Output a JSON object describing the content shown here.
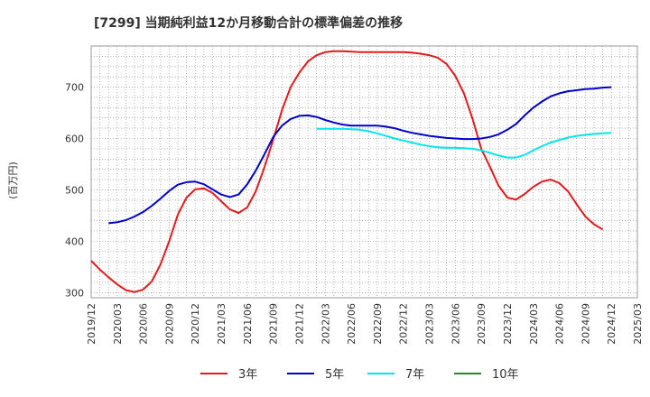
{
  "chart_data": {
    "type": "line",
    "title": "[7299]  当期純利益12か月移動合計の標準偏差の推移",
    "ylabel": "(百万円)",
    "xlabel": "",
    "ylim": [
      290,
      780
    ],
    "yticks": [
      300,
      400,
      500,
      600,
      700
    ],
    "xrange": [
      "2019-12",
      "2025-03"
    ],
    "xticks": [
      "2019/12",
      "2020/03",
      "2020/06",
      "2020/09",
      "2020/12",
      "2021/03",
      "2021/06",
      "2021/09",
      "2021/12",
      "2022/03",
      "2022/06",
      "2022/09",
      "2022/12",
      "2023/03",
      "2023/06",
      "2023/09",
      "2023/12",
      "2024/03",
      "2024/06",
      "2024/09",
      "2024/12",
      "2025/03"
    ],
    "grid": true,
    "legend_position": "bottom",
    "series": [
      {
        "name": "3年",
        "color": "#e31a1c",
        "points": [
          [
            "2019-12",
            362
          ],
          [
            "2020-01",
            345
          ],
          [
            "2020-02",
            330
          ],
          [
            "2020-03",
            316
          ],
          [
            "2020-04",
            305
          ],
          [
            "2020-05",
            301
          ],
          [
            "2020-06",
            306
          ],
          [
            "2020-07",
            322
          ],
          [
            "2020-08",
            355
          ],
          [
            "2020-09",
            400
          ],
          [
            "2020-10",
            452
          ],
          [
            "2020-11",
            485
          ],
          [
            "2020-12",
            501
          ],
          [
            "2021-01",
            503
          ],
          [
            "2021-02",
            494
          ],
          [
            "2021-03",
            478
          ],
          [
            "2021-04",
            462
          ],
          [
            "2021-05",
            455
          ],
          [
            "2021-06",
            466
          ],
          [
            "2021-07",
            498
          ],
          [
            "2021-08",
            545
          ],
          [
            "2021-09",
            598
          ],
          [
            "2021-10",
            655
          ],
          [
            "2021-11",
            700
          ],
          [
            "2021-12",
            728
          ],
          [
            "2022-01",
            750
          ],
          [
            "2022-02",
            762
          ],
          [
            "2022-03",
            768
          ],
          [
            "2022-04",
            770
          ],
          [
            "2022-05",
            770
          ],
          [
            "2022-06",
            769
          ],
          [
            "2022-07",
            768
          ],
          [
            "2022-08",
            768
          ],
          [
            "2022-09",
            768
          ],
          [
            "2022-10",
            768
          ],
          [
            "2022-11",
            768
          ],
          [
            "2022-12",
            768
          ],
          [
            "2023-01",
            767
          ],
          [
            "2023-02",
            765
          ],
          [
            "2023-03",
            762
          ],
          [
            "2023-04",
            757
          ],
          [
            "2023-05",
            745
          ],
          [
            "2023-06",
            722
          ],
          [
            "2023-07",
            688
          ],
          [
            "2023-08",
            638
          ],
          [
            "2023-09",
            580
          ],
          [
            "2023-10",
            545
          ],
          [
            "2023-11",
            508
          ],
          [
            "2023-12",
            485
          ],
          [
            "2024-01",
            481
          ],
          [
            "2024-02",
            492
          ],
          [
            "2024-03",
            506
          ],
          [
            "2024-04",
            516
          ],
          [
            "2024-05",
            520
          ],
          [
            "2024-06",
            513
          ],
          [
            "2024-07",
            497
          ],
          [
            "2024-08",
            472
          ],
          [
            "2024-09",
            448
          ],
          [
            "2024-10",
            433
          ],
          [
            "2024-11",
            423
          ]
        ]
      },
      {
        "name": "5年",
        "color": "#0000cc",
        "points": [
          [
            "2020-02",
            435
          ],
          [
            "2020-03",
            437
          ],
          [
            "2020-04",
            441
          ],
          [
            "2020-05",
            448
          ],
          [
            "2020-06",
            457
          ],
          [
            "2020-07",
            469
          ],
          [
            "2020-08",
            483
          ],
          [
            "2020-09",
            498
          ],
          [
            "2020-10",
            510
          ],
          [
            "2020-11",
            515
          ],
          [
            "2020-12",
            516
          ],
          [
            "2021-01",
            511
          ],
          [
            "2021-02",
            501
          ],
          [
            "2021-03",
            491
          ],
          [
            "2021-04",
            486
          ],
          [
            "2021-05",
            491
          ],
          [
            "2021-06",
            511
          ],
          [
            "2021-07",
            538
          ],
          [
            "2021-08",
            570
          ],
          [
            "2021-09",
            603
          ],
          [
            "2021-10",
            625
          ],
          [
            "2021-11",
            638
          ],
          [
            "2021-12",
            644
          ],
          [
            "2022-01",
            645
          ],
          [
            "2022-02",
            642
          ],
          [
            "2022-03",
            636
          ],
          [
            "2022-04",
            631
          ],
          [
            "2022-05",
            627
          ],
          [
            "2022-06",
            625
          ],
          [
            "2022-07",
            625
          ],
          [
            "2022-08",
            625
          ],
          [
            "2022-09",
            625
          ],
          [
            "2022-10",
            623
          ],
          [
            "2022-11",
            620
          ],
          [
            "2022-12",
            615
          ],
          [
            "2023-01",
            611
          ],
          [
            "2023-02",
            608
          ],
          [
            "2023-03",
            605
          ],
          [
            "2023-04",
            603
          ],
          [
            "2023-05",
            601
          ],
          [
            "2023-06",
            600
          ],
          [
            "2023-07",
            599
          ],
          [
            "2023-08",
            599
          ],
          [
            "2023-09",
            600
          ],
          [
            "2023-10",
            603
          ],
          [
            "2023-11",
            608
          ],
          [
            "2023-12",
            617
          ],
          [
            "2024-01",
            628
          ],
          [
            "2024-02",
            645
          ],
          [
            "2024-03",
            660
          ],
          [
            "2024-04",
            672
          ],
          [
            "2024-05",
            682
          ],
          [
            "2024-06",
            688
          ],
          [
            "2024-07",
            692
          ],
          [
            "2024-08",
            694
          ],
          [
            "2024-09",
            696
          ],
          [
            "2024-10",
            697
          ],
          [
            "2024-11",
            699
          ],
          [
            "2024-12",
            700
          ]
        ]
      },
      {
        "name": "7年",
        "color": "#00e5ee",
        "points": [
          [
            "2022-02",
            619
          ],
          [
            "2022-03",
            619
          ],
          [
            "2022-04",
            619
          ],
          [
            "2022-05",
            619
          ],
          [
            "2022-06",
            618
          ],
          [
            "2022-07",
            617
          ],
          [
            "2022-08",
            614
          ],
          [
            "2022-09",
            610
          ],
          [
            "2022-10",
            605
          ],
          [
            "2022-11",
            600
          ],
          [
            "2022-12",
            596
          ],
          [
            "2023-01",
            592
          ],
          [
            "2023-02",
            588
          ],
          [
            "2023-03",
            585
          ],
          [
            "2023-04",
            583
          ],
          [
            "2023-05",
            582
          ],
          [
            "2023-06",
            582
          ],
          [
            "2023-07",
            581
          ],
          [
            "2023-08",
            580
          ],
          [
            "2023-09",
            577
          ],
          [
            "2023-10",
            572
          ],
          [
            "2023-11",
            567
          ],
          [
            "2023-12",
            563
          ],
          [
            "2024-01",
            563
          ],
          [
            "2024-02",
            568
          ],
          [
            "2024-03",
            577
          ],
          [
            "2024-04",
            585
          ],
          [
            "2024-05",
            592
          ],
          [
            "2024-06",
            597
          ],
          [
            "2024-07",
            602
          ],
          [
            "2024-08",
            605
          ],
          [
            "2024-09",
            607
          ],
          [
            "2024-10",
            609
          ],
          [
            "2024-11",
            610
          ],
          [
            "2024-12",
            611
          ]
        ]
      },
      {
        "name": "10年",
        "color": "#228b22",
        "points": []
      }
    ]
  }
}
